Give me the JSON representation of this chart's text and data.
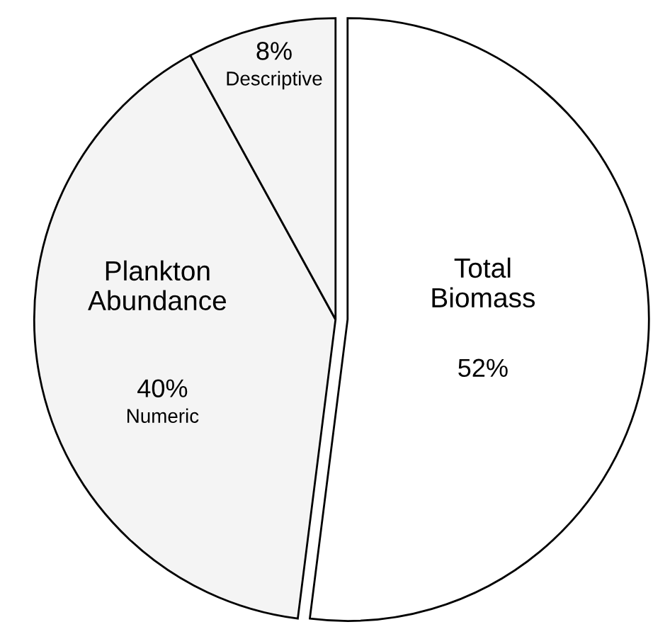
{
  "chart_data": {
    "type": "pie",
    "categories": [
      "Total Biomass",
      "Numeric",
      "Descriptive"
    ],
    "values": [
      52,
      40,
      8
    ],
    "value_labels": [
      "52%",
      "40%",
      "8%"
    ],
    "colors": [
      "#ffffff",
      "#f4f4f4",
      "#f4f4f4"
    ],
    "annotations": [
      "Plankton Abundance"
    ]
  }
}
